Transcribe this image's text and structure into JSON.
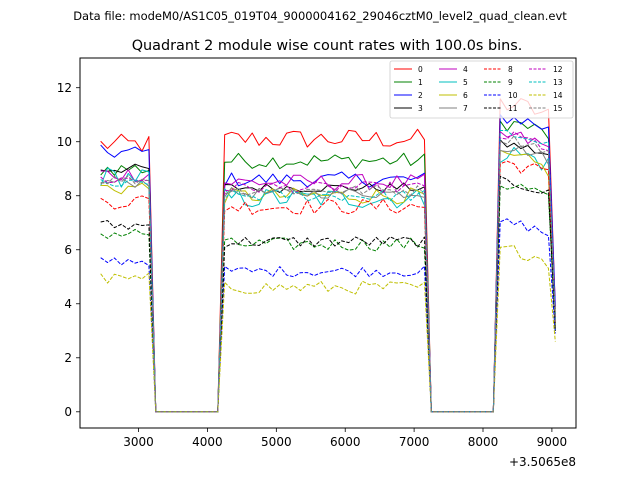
{
  "chart_data": {
    "type": "line",
    "suptitle": "Data file: modeM0/AS1C05_019T04_9000004162_29046cztM0_level2_quad_clean.evt",
    "title": "Quadrant 2 module wise count rates with 100.0s bins.",
    "xlabel": "",
    "ylabel": "",
    "x_offset_label": "+3.5065e8",
    "xlim": [
      2150,
      9350
    ],
    "ylim": [
      -0.6,
      13.1
    ],
    "x_ticks": [
      3000,
      4000,
      5000,
      6000,
      7000,
      8000,
      9000
    ],
    "x_tick_labels": [
      "3000",
      "4000",
      "5000",
      "6000",
      "7000",
      "8000",
      "9000"
    ],
    "y_ticks": [
      0,
      2,
      4,
      6,
      8,
      10,
      12
    ],
    "y_tick_labels": [
      "0",
      "2",
      "4",
      "6",
      "8",
      "10",
      "12"
    ],
    "grid": false,
    "legend": {
      "placement": "top-right",
      "columns": 4
    },
    "segments": [
      {
        "x_start": 2450,
        "x_end": 3150
      },
      {
        "x_start": 3250,
        "x_end": 4150
      },
      {
        "x_start": 4250,
        "x_end": 7150
      },
      {
        "x_start": 7250,
        "x_end": 8150
      },
      {
        "x_start": 8250,
        "x_end": 9050
      }
    ],
    "series": [
      {
        "name": "0",
        "color": "#ff0000",
        "dash": false,
        "levels": [
          9.9,
          0,
          10.1,
          0,
          11.4
        ],
        "noise": 0.38,
        "end_value": 3.8
      },
      {
        "name": "1",
        "color": "#008000",
        "dash": false,
        "levels": [
          9.0,
          0,
          9.3,
          0,
          10.7
        ],
        "noise": 0.3,
        "end_value": 3.6
      },
      {
        "name": "2",
        "color": "#0000ff",
        "dash": false,
        "levels": [
          9.6,
          0,
          8.6,
          0,
          10.9
        ],
        "noise": 0.28,
        "end_value": 3.9
      },
      {
        "name": "3",
        "color": "#000000",
        "dash": false,
        "levels": [
          9.0,
          0,
          8.3,
          0,
          9.9
        ],
        "noise": 0.18,
        "end_value": 3.4
      },
      {
        "name": "4",
        "color": "#bf00bf",
        "dash": false,
        "levels": [
          8.8,
          0,
          8.5,
          0,
          10.2
        ],
        "noise": 0.3,
        "end_value": 3.5
      },
      {
        "name": "5",
        "color": "#00bfbf",
        "dash": false,
        "levels": [
          8.7,
          0,
          7.9,
          0,
          9.6
        ],
        "noise": 0.4,
        "end_value": 3.3
      },
      {
        "name": "6",
        "color": "#bfbf00",
        "dash": false,
        "levels": [
          8.3,
          0,
          8.0,
          0,
          9.4
        ],
        "noise": 0.3,
        "end_value": 3.2
      },
      {
        "name": "7",
        "color": "#808080",
        "dash": false,
        "levels": [
          8.5,
          0,
          8.1,
          0,
          9.8
        ],
        "noise": 0.2,
        "end_value": 3.4
      },
      {
        "name": "8",
        "color": "#ff0000",
        "dash": true,
        "levels": [
          7.8,
          0,
          7.6,
          0,
          9.2
        ],
        "noise": 0.3,
        "end_value": 3.3
      },
      {
        "name": "9",
        "color": "#008000",
        "dash": true,
        "levels": [
          6.6,
          0,
          6.2,
          0,
          8.4
        ],
        "noise": 0.25,
        "end_value": 3.0
      },
      {
        "name": "10",
        "color": "#0000ff",
        "dash": true,
        "levels": [
          5.6,
          0,
          5.2,
          0,
          7.0
        ],
        "noise": 0.2,
        "end_value": 2.9
      },
      {
        "name": "11",
        "color": "#000000",
        "dash": true,
        "levels": [
          6.9,
          0,
          6.3,
          0,
          8.5
        ],
        "noise": 0.22,
        "end_value": 3.0
      },
      {
        "name": "12",
        "color": "#bf00bf",
        "dash": true,
        "levels": [
          8.6,
          0,
          8.3,
          0,
          10.2
        ],
        "noise": 0.22,
        "end_value": 3.3
      },
      {
        "name": "13",
        "color": "#00bfbf",
        "dash": true,
        "levels": [
          8.4,
          0,
          8.0,
          0,
          10.3
        ],
        "noise": 0.22,
        "end_value": 3.4
      },
      {
        "name": "14",
        "color": "#bfbf00",
        "dash": true,
        "levels": [
          4.9,
          0,
          4.6,
          0,
          6.0
        ],
        "noise": 0.25,
        "end_value": 2.6
      },
      {
        "name": "15",
        "color": "#808080",
        "dash": true,
        "levels": [
          8.6,
          0,
          8.2,
          0,
          10.1
        ],
        "noise": 0.2,
        "end_value": 3.3
      }
    ]
  }
}
